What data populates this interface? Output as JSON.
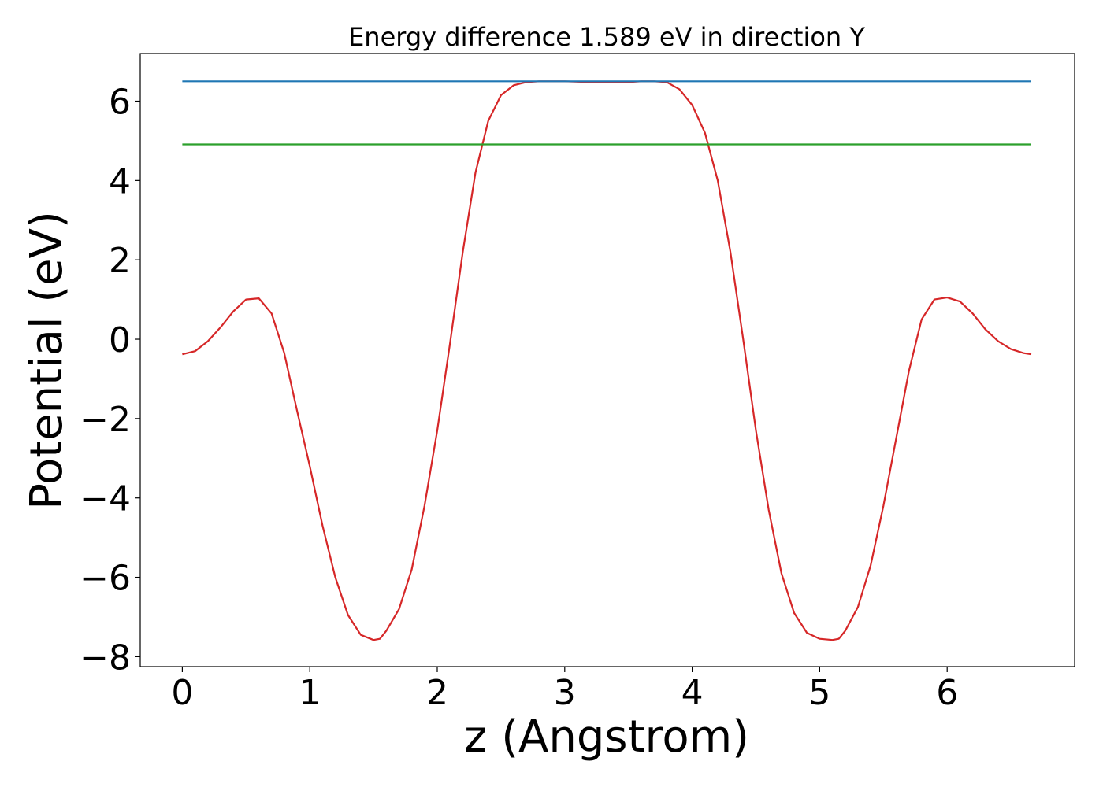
{
  "chart_data": {
    "type": "line",
    "title": "Energy difference 1.589 eV in direction Y",
    "xlabel": "z (Angstrom)",
    "ylabel": "Potential (eV)",
    "xlim": [
      -0.33,
      7.0
    ],
    "ylim": [
      -8.25,
      7.2
    ],
    "xticks": [
      0,
      1,
      2,
      3,
      4,
      5,
      6
    ],
    "yticks": [
      -8,
      -6,
      -4,
      -2,
      0,
      2,
      4,
      6
    ],
    "xtick_labels": [
      "0",
      "1",
      "2",
      "3",
      "4",
      "5",
      "6"
    ],
    "ytick_labels": [
      "−8",
      "−6",
      "−4",
      "−2",
      "0",
      "2",
      "4",
      "6"
    ],
    "grid": false,
    "legend": "none",
    "series": [
      {
        "color": "#d62728",
        "x": [
          0.0,
          0.1,
          0.2,
          0.3,
          0.4,
          0.5,
          0.6,
          0.7,
          0.8,
          0.9,
          1.0,
          1.1,
          1.2,
          1.3,
          1.4,
          1.5,
          1.55,
          1.6,
          1.7,
          1.8,
          1.9,
          2.0,
          2.1,
          2.2,
          2.3,
          2.4,
          2.5,
          2.6,
          2.7,
          2.8,
          2.9,
          3.0,
          3.1,
          3.2,
          3.3,
          3.4,
          3.5,
          3.6,
          3.7,
          3.8,
          3.9,
          4.0,
          4.1,
          4.2,
          4.3,
          4.4,
          4.5,
          4.6,
          4.7,
          4.8,
          4.9,
          5.0,
          5.1,
          5.15,
          5.2,
          5.3,
          5.4,
          5.5,
          5.6,
          5.7,
          5.8,
          5.9,
          6.0,
          6.1,
          6.2,
          6.3,
          6.4,
          6.5,
          6.6,
          6.66
        ],
        "y": [
          -0.38,
          -0.3,
          -0.05,
          0.3,
          0.7,
          1.0,
          1.03,
          0.65,
          -0.35,
          -1.8,
          -3.2,
          -4.7,
          -6.0,
          -6.95,
          -7.45,
          -7.58,
          -7.55,
          -7.35,
          -6.8,
          -5.8,
          -4.2,
          -2.3,
          -0.1,
          2.2,
          4.2,
          5.5,
          6.15,
          6.4,
          6.48,
          6.5,
          6.5,
          6.5,
          6.49,
          6.48,
          6.47,
          6.47,
          6.48,
          6.5,
          6.5,
          6.48,
          6.3,
          5.9,
          5.2,
          4.0,
          2.2,
          0.0,
          -2.3,
          -4.3,
          -5.9,
          -6.9,
          -7.4,
          -7.55,
          -7.58,
          -7.55,
          -7.35,
          -6.75,
          -5.7,
          -4.2,
          -2.5,
          -0.8,
          0.5,
          1.0,
          1.05,
          0.95,
          0.65,
          0.25,
          -0.05,
          -0.25,
          -0.35,
          -0.38
        ]
      },
      {
        "color": "#1f77b4",
        "x": [
          0.0,
          6.66
        ],
        "y": [
          6.5,
          6.5
        ]
      },
      {
        "color": "#2ca02c",
        "x": [
          0.0,
          6.66
        ],
        "y": [
          4.91,
          4.91
        ]
      }
    ]
  }
}
